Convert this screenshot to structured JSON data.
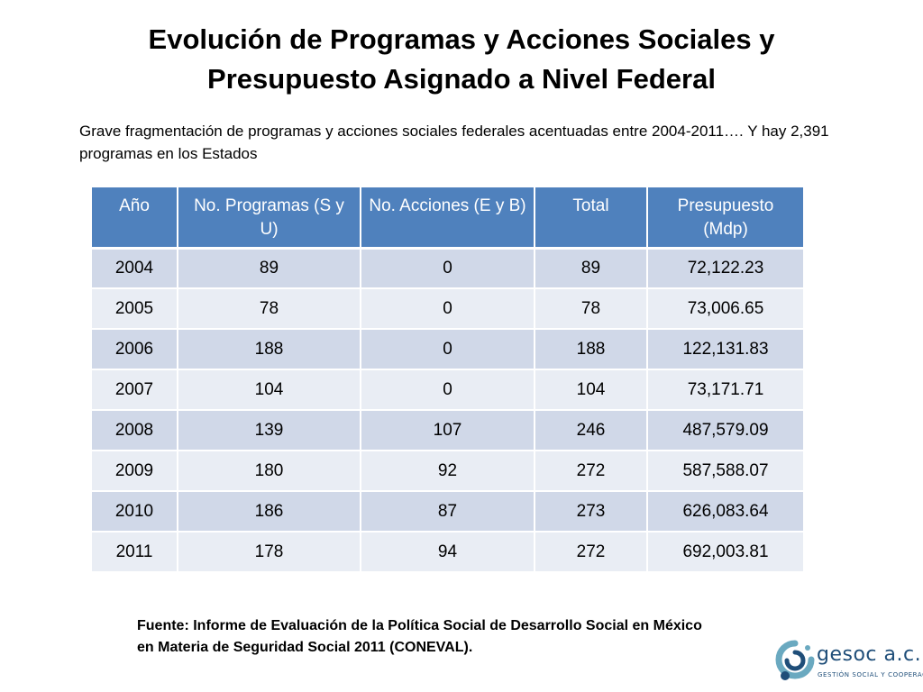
{
  "title_line1": "Evolución de Programas y Acciones Sociales y",
  "title_line2": "Presupuesto Asignado a Nivel Federal",
  "subtitle": "Grave fragmentación de programas y acciones sociales federales acentuadas entre 2004-2011…. Y hay 2,391 programas en los Estados",
  "table": {
    "headers": [
      "Año",
      "No. Programas (S y U)",
      "No. Acciones (E y B)",
      "Total",
      "Presupuesto (Mdp)"
    ],
    "rows": [
      [
        "2004",
        "89",
        "0",
        "89",
        "72,122.23"
      ],
      [
        "2005",
        "78",
        "0",
        "78",
        "73,006.65"
      ],
      [
        "2006",
        "188",
        "0",
        "188",
        "122,131.83"
      ],
      [
        "2007",
        "104",
        "0",
        "104",
        "73,171.71"
      ],
      [
        "2008",
        "139",
        "107",
        "246",
        "487,579.09"
      ],
      [
        "2009",
        "180",
        "92",
        "272",
        "587,588.07"
      ],
      [
        "2010",
        "186",
        "87",
        "273",
        "626,083.64"
      ],
      [
        "2011",
        "178",
        "94",
        "272",
        "692,003.81"
      ]
    ]
  },
  "source_line1": "Fuente: Informe de Evaluación de la Política Social de Desarrollo Social en México",
  "source_line2": "en Materia de Seguridad Social 2011 (CONEVAL).",
  "logo": {
    "name": "gesoc a.c.",
    "tagline": "GESTIÓN SOCIAL Y COOPERACIÓN",
    "icon": "gesoc-logo-icon",
    "colors": {
      "dark": "#1f4e79",
      "teal": "#6aa9c0"
    }
  },
  "colors": {
    "header_bg": "#4f81bd",
    "row_odd": "#d0d8e8",
    "row_even": "#e9edf4"
  }
}
